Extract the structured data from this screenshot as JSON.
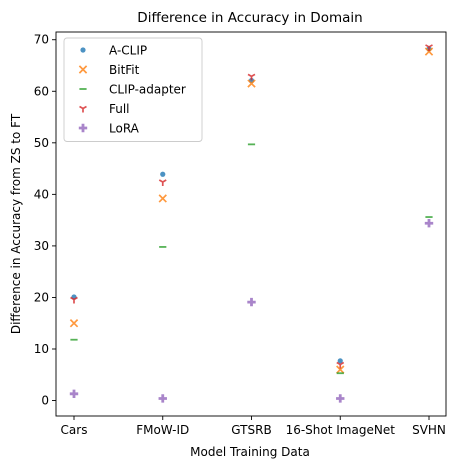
{
  "chart_data": {
    "type": "scatter",
    "title": "Difference in Accuracy in Domain",
    "xlabel": "Model Training Data",
    "ylabel": "Difference in Accuracy from ZS to FT",
    "categories": [
      "Cars",
      "FMoW-ID",
      "GTSRB",
      "16-Shot ImageNet",
      "SVHN"
    ],
    "ylim": [
      -3,
      71.5
    ],
    "yticks": [
      0,
      10,
      20,
      30,
      40,
      50,
      60,
      70
    ],
    "grid": false,
    "legend_position": "top-left",
    "series": [
      {
        "name": "A-CLIP",
        "marker": "dot",
        "color": "#1f77b4",
        "values": [
          20.1,
          43.9,
          62.1,
          7.7,
          68.2
        ]
      },
      {
        "name": "BitFit",
        "marker": "x",
        "color": "#ff7f0e",
        "values": [
          15.0,
          39.2,
          61.5,
          6.0,
          67.7
        ]
      },
      {
        "name": "CLIP-adapter",
        "marker": "hline",
        "color": "#2ca02c",
        "values": [
          11.8,
          29.8,
          49.7,
          5.3,
          35.6
        ]
      },
      {
        "name": "Full",
        "marker": "tri_down",
        "color": "#d62728",
        "values": [
          19.6,
          42.4,
          62.9,
          7.0,
          68.6
        ]
      },
      {
        "name": "LoRA",
        "marker": "plus",
        "color": "#9467bd",
        "values": [
          1.3,
          0.4,
          19.1,
          0.4,
          34.4
        ]
      }
    ]
  }
}
